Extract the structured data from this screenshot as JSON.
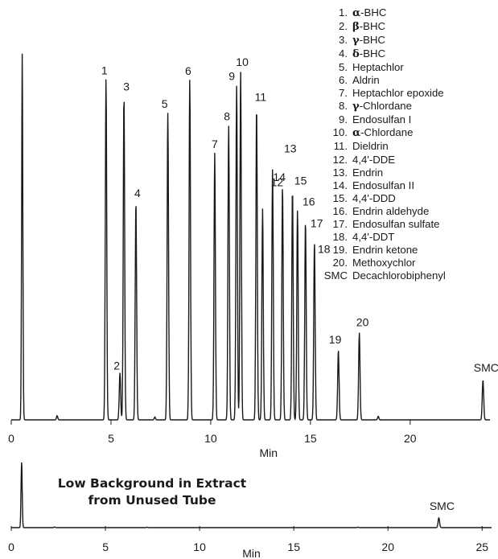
{
  "chart_data": [
    {
      "type": "line",
      "xlabel": "Min",
      "xlim": [
        0,
        24
      ],
      "xticks": [
        0,
        5,
        10,
        15,
        20
      ],
      "peaks": [
        {
          "label": "1",
          "x": 4.75,
          "height": 0.976
        },
        {
          "label": "2",
          "x": 5.45,
          "height": 0.135
        },
        {
          "label": "3",
          "x": 5.65,
          "height": 0.93
        },
        {
          "label": "4",
          "x": 6.25,
          "height": 0.625
        },
        {
          "label": "5",
          "x": 7.85,
          "height": 0.88
        },
        {
          "label": "6",
          "x": 8.95,
          "height": 0.975
        },
        {
          "label": "7",
          "x": 10.2,
          "height": 0.765
        },
        {
          "label": "8",
          "x": 10.9,
          "height": 0.845
        },
        {
          "label": "9",
          "x": 11.3,
          "height": 0.96
        },
        {
          "label": "10",
          "x": 11.5,
          "height": 1.0
        },
        {
          "label": "11",
          "x": 12.3,
          "height": 0.9
        },
        {
          "label": "12",
          "x": 12.6,
          "height": 0.605
        },
        {
          "label": "13",
          "x": 13.1,
          "height": 0.72
        },
        {
          "label": "14",
          "x": 13.6,
          "height": 0.67
        },
        {
          "label": "15",
          "x": 14.1,
          "height": 0.66
        },
        {
          "label": "16",
          "x": 14.35,
          "height": 0.6
        },
        {
          "label": "17",
          "x": 14.75,
          "height": 0.57
        },
        {
          "label": "18",
          "x": 15.2,
          "height": 0.51
        },
        {
          "label": "19",
          "x": 16.4,
          "height": 0.2
        },
        {
          "label": "20",
          "x": 17.45,
          "height": 0.25
        },
        {
          "label": "SMC",
          "x": 23.65,
          "height": 0.115
        }
      ]
    },
    {
      "type": "line",
      "xlabel": "Min",
      "xlim": [
        0,
        25.5
      ],
      "xticks": [
        0,
        5,
        10,
        15,
        20,
        25
      ],
      "peaks": [
        {
          "label": "SMC",
          "x": 22.7,
          "height": 0.17
        }
      ]
    }
  ],
  "legend": [
    {
      "num": "1.",
      "greek": "α",
      "name": "-BHC"
    },
    {
      "num": "2.",
      "greek": "β",
      "name": "-BHC"
    },
    {
      "num": "3.",
      "greek": "γ",
      "name": "-BHC"
    },
    {
      "num": "4.",
      "greek": "δ",
      "name": "-BHC"
    },
    {
      "num": "5.",
      "greek": "",
      "name": "Heptachlor"
    },
    {
      "num": "6.",
      "greek": "",
      "name": "Aldrin"
    },
    {
      "num": "7.",
      "greek": "",
      "name": "Heptachlor epoxide"
    },
    {
      "num": "8.",
      "greek": "γ",
      "name": "-Chlordane"
    },
    {
      "num": "9.",
      "greek": "",
      "name": "Endosulfan I"
    },
    {
      "num": "10.",
      "greek": "α",
      "name": "-Chlordane"
    },
    {
      "num": "11.",
      "greek": "",
      "name": "Dieldrin"
    },
    {
      "num": "12.",
      "greek": "",
      "name": "4,4'-DDE"
    },
    {
      "num": "13.",
      "greek": "",
      "name": "Endrin"
    },
    {
      "num": "14.",
      "greek": "",
      "name": "Endosulfan II"
    },
    {
      "num": "15.",
      "greek": "",
      "name": "4,4'-DDD"
    },
    {
      "num": "16.",
      "greek": "",
      "name": "Endrin aldehyde"
    },
    {
      "num": "17.",
      "greek": "",
      "name": "Endosulfan sulfate"
    },
    {
      "num": "18.",
      "greek": "",
      "name": "4,4'-DDT"
    },
    {
      "num": "19.",
      "greek": "",
      "name": "Endrin ketone"
    },
    {
      "num": "20.",
      "greek": "",
      "name": "Methoxychlor"
    },
    {
      "num": "SMC",
      "greek": "",
      "name": "Decachlorobiphenyl"
    }
  ],
  "note": {
    "line1": "Low Background in Extract",
    "line2": "from Unused Tube"
  },
  "colors": {
    "trace": "#1a1a1a",
    "text": "#1a1a1a"
  }
}
